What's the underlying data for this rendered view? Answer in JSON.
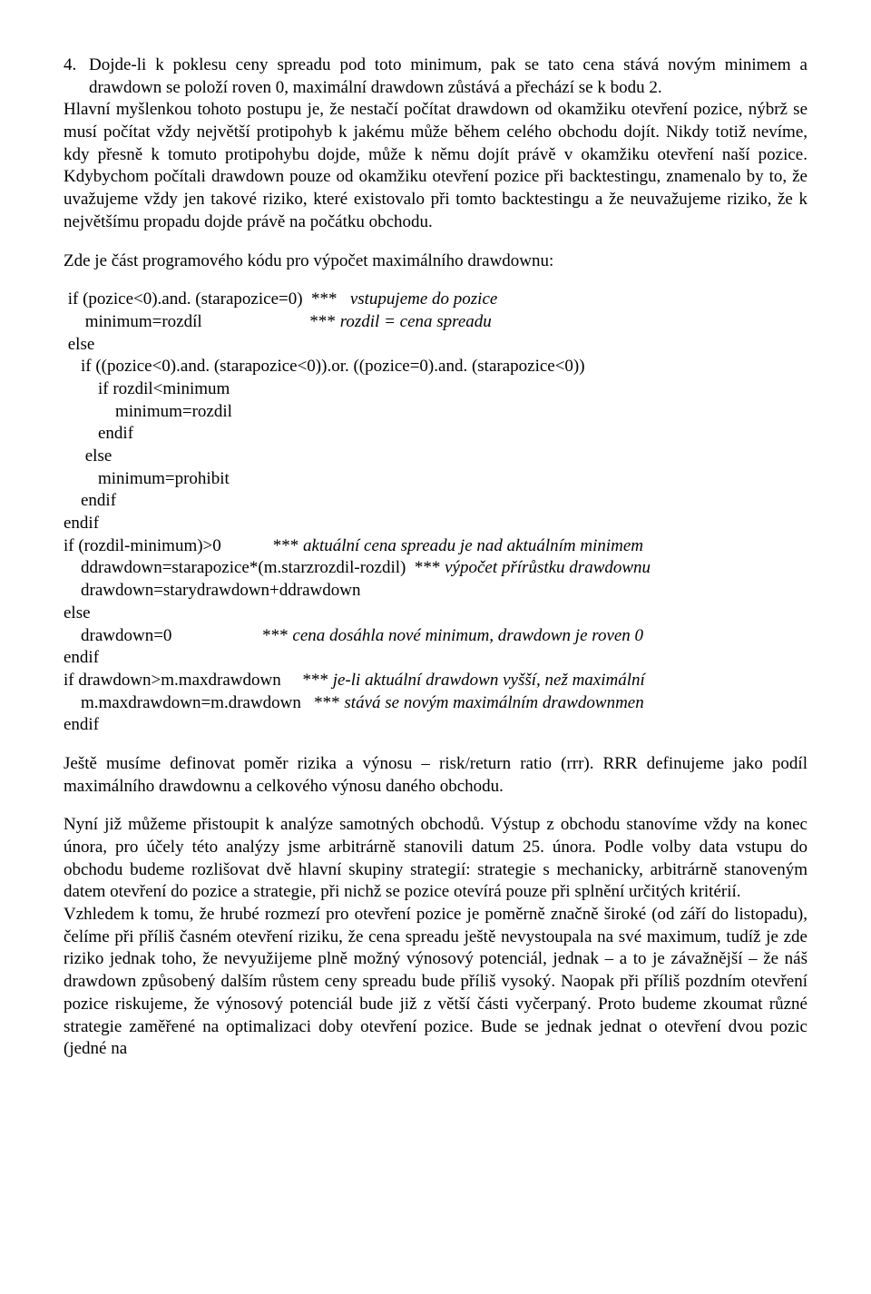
{
  "p1_num": "4.",
  "p1_txt": "Dojde-li k poklesu ceny spreadu pod toto minimum, pak se tato cena stává novým minimem a drawdown se položí roven 0, maximální drawdown zůstává a přechází se k bodu 2.",
  "p2": "Hlavní myšlenkou tohoto postupu je, že nestačí počítat drawdown od okamžiku otevření pozice, nýbrž se musí počítat vždy největší protipohyb k jakému může během celého obchodu dojít. Nikdy totiž nevíme, kdy přesně k tomuto protipohybu dojde, může k němu dojít právě v okamžiku otevření naší pozice. Kdybychom počítali drawdown pouze od okamžiku otevření pozice při backtestingu, znamenalo by to, že uvažujeme vždy jen takové riziko, které existovalo při tomto backtestingu a že neuvažujeme riziko, že k největšímu propadu dojde právě na počátku obchodu.",
  "p3": "Zde je část programového kódu pro výpočet maximálního drawdownu:",
  "code": {
    "l1a": " if (pozice<0).and. (starapozice=0)  ***   ",
    "l1b": "vstupujeme do pozice",
    "l2a": "     minimum=rozdíl                         *** ",
    "l2b": "rozdil = cena spreadu",
    "l3": " else",
    "l4": "    if ((pozice<0).and. (starapozice<0)).or. ((pozice=0).and. (starapozice<0))",
    "l5": "        if rozdil<minimum",
    "l6": "            minimum=rozdil",
    "l7": "        endif",
    "l8": "     else",
    "l9": "        minimum=prohibit",
    "l10": "    endif",
    "l11": "endif",
    "l12a": "if (rozdil-minimum)>0            *** ",
    "l12b": "aktuální cena spreadu je nad aktuálním minimem",
    "l13a": "    ddrawdown=starapozice*(m.starzrozdil-rozdil)  *** ",
    "l13b": "výpočet přírůstku drawdownu",
    "l14": "    drawdown=starydrawdown+ddrawdown",
    "l15": "else",
    "l16a": "    drawdown=0                     *** ",
    "l16b": "cena dosáhla nové minimum, drawdown je roven 0",
    "l17": "endif",
    "l18a": "if drawdown>m.maxdrawdown     *** ",
    "l18b": "je-li aktuální drawdown vyšší, než maximální",
    "l19a": "    m.maxdrawdown=m.drawdown   *** ",
    "l19b": "stává se novým maximálním drawdownmen",
    "l20": "endif"
  },
  "p4": "Ještě musíme definovat poměr rizika a výnosu – risk/return ratio (rrr). RRR definujeme jako podíl maximálního drawdownu a celkového výnosu daného obchodu.",
  "p5": "Nyní již můžeme přistoupit k analýze samotných obchodů. Výstup z obchodu stanovíme vždy na konec února, pro účely této analýzy jsme arbitrárně stanovili datum 25. února. Podle volby data vstupu do obchodu budeme rozlišovat dvě hlavní skupiny strategií: strategie s mechanicky, arbitrárně stanoveným datem otevření do pozice a strategie, při nichž se pozice otevírá pouze při splnění určitých kritérií.",
  "p6": "Vzhledem k tomu, že hrubé rozmezí pro otevření pozice je poměrně značně široké (od září do listopadu), čelíme při příliš časném otevření riziku, že cena spreadu ještě nevystoupala na své maximum, tudíž je zde riziko jednak toho, že nevyužijeme plně možný výnosový potenciál, jednak – a to je závažnější – že náš drawdown způsobený dalším růstem ceny spreadu bude příliš vysoký. Naopak při příliš pozdním otevření pozice riskujeme, že výnosový potenciál bude již z větší části vyčerpaný. Proto budeme zkoumat různé strategie zaměřené na optimalizaci doby otevření pozice. Bude se jednak jednat o otevření dvou pozic (jedné na"
}
